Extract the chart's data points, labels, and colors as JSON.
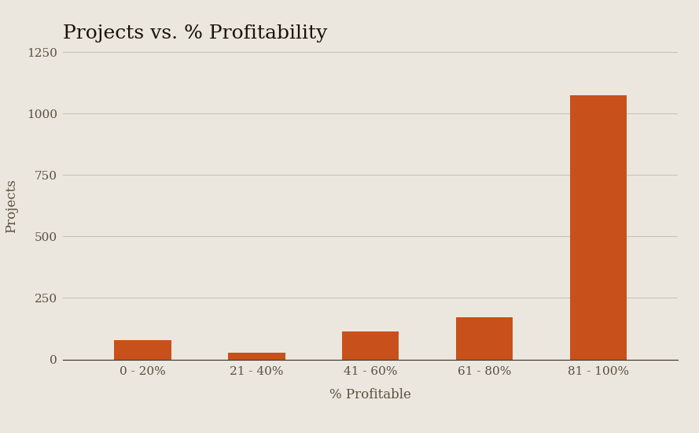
{
  "title": "Projects vs. % Profitability",
  "categories": [
    "0 - 20%",
    "21 - 40%",
    "41 - 60%",
    "61 - 80%",
    "81 - 100%"
  ],
  "values": [
    80,
    28,
    115,
    170,
    1075
  ],
  "bar_color": "#c8511b",
  "background_color": "#ece7de",
  "xlabel": "% Profitable",
  "ylabel": "Projects",
  "ylim": [
    0,
    1250
  ],
  "yticks": [
    0,
    250,
    500,
    750,
    1000,
    1250
  ],
  "title_fontsize": 18,
  "axis_label_fontsize": 12,
  "tick_fontsize": 11,
  "grid_color": "#c5bfb5",
  "title_color": "#1a1208",
  "text_color": "#5a5040",
  "bottom_spine_color": "#3a3020"
}
